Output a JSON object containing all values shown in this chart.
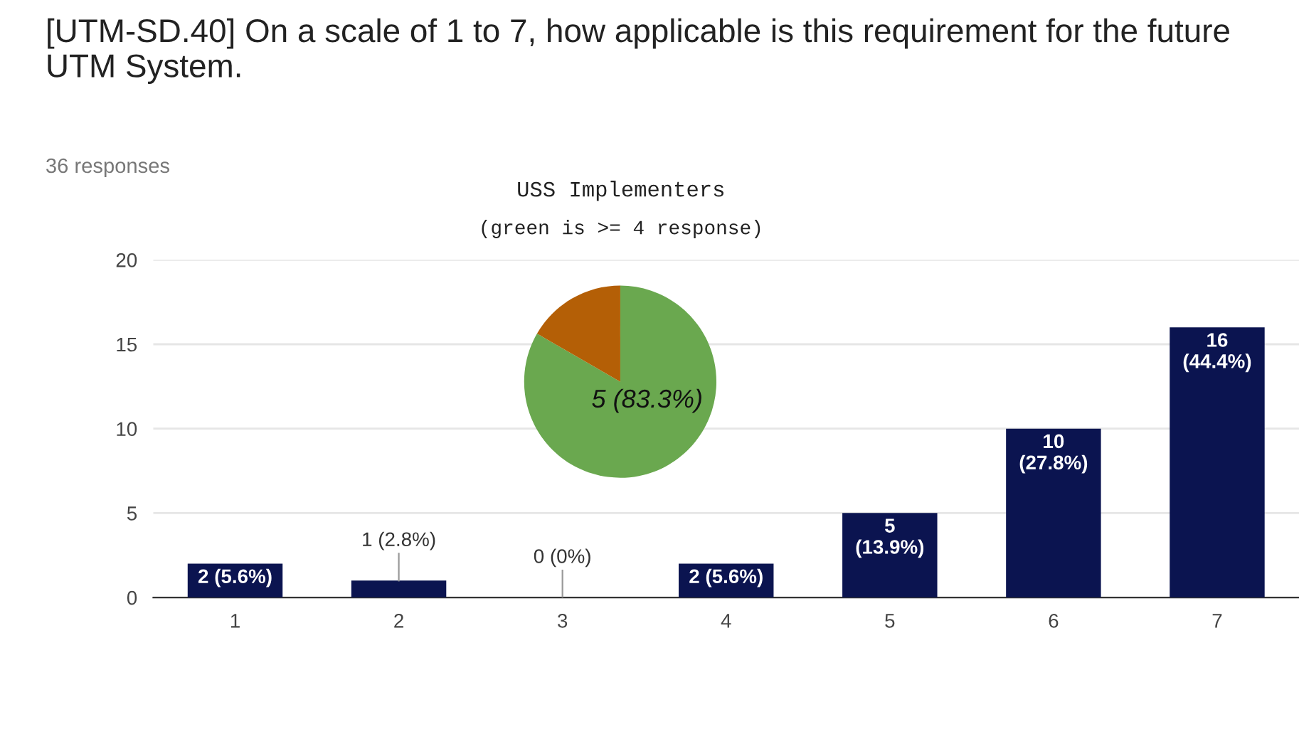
{
  "chart_data": [
    {
      "type": "bar",
      "title": "[UTM-SD.40] On a scale of 1 to 7, how applicable is this requirement for the future UTM System.",
      "subtitle": "36 responses",
      "categories": [
        "1",
        "2",
        "3",
        "4",
        "5",
        "6",
        "7"
      ],
      "values": [
        2,
        1,
        0,
        2,
        5,
        10,
        16
      ],
      "value_labels": [
        "2 (5.6%)",
        "1 (2.8%)",
        "0 (0%)",
        "2 (5.6%)",
        "5\n(13.9%)",
        "10\n(27.8%)",
        "16\n(44.4%)"
      ],
      "color": "#0b1450",
      "ylim": [
        0,
        20
      ],
      "yticks": [
        0,
        5,
        10,
        15,
        20
      ],
      "grid": "y"
    },
    {
      "type": "pie",
      "title": "USS Implementers",
      "subtitle": "(green is >= 4 response)",
      "categories": [
        null,
        null
      ],
      "values": [
        5,
        1
      ],
      "colors": [
        "#6aa84f",
        "#b45f06"
      ],
      "value_labels": [
        "5 (83.3%)",
        null
      ]
    }
  ]
}
